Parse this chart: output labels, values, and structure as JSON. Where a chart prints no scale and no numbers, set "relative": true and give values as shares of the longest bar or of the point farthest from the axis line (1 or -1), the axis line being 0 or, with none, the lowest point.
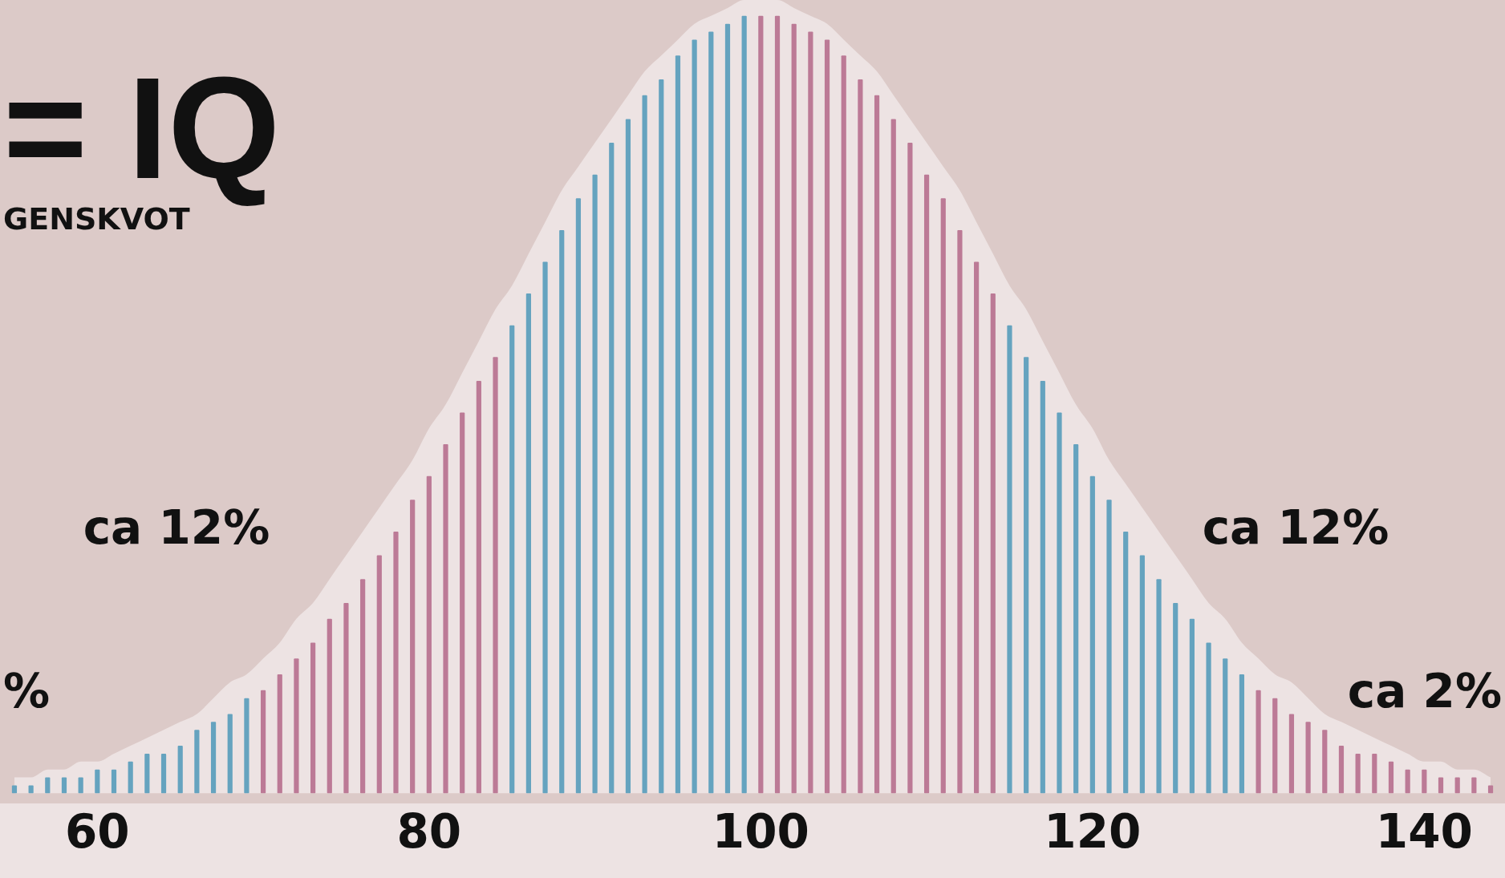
{
  "chart_data": {
    "type": "bar",
    "relative": true,
    "categories": [
      null,
      null,
      null,
      null,
      null,
      "60",
      null,
      null,
      null,
      null,
      null,
      null,
      null,
      null,
      null,
      null,
      null,
      null,
      null,
      null,
      null,
      null,
      null,
      null,
      null,
      "80",
      null,
      null,
      null,
      null,
      null,
      null,
      null,
      null,
      null,
      null,
      null,
      null,
      null,
      null,
      null,
      null,
      null,
      null,
      null,
      "100",
      null,
      null,
      null,
      null,
      null,
      null,
      null,
      null,
      null,
      null,
      null,
      null,
      null,
      null,
      null,
      null,
      null,
      null,
      null,
      "120",
      null,
      null,
      null,
      null,
      null,
      null,
      null,
      null,
      null,
      null,
      null,
      null,
      null,
      null,
      null,
      null,
      null,
      null,
      null,
      "140",
      null,
      null,
      null,
      null
    ],
    "series": [
      {
        "type": "area",
        "color": "#ede3e3",
        "values": [
          0.02,
          0.02,
          0.03,
          0.03,
          0.04,
          0.04,
          0.05,
          0.06,
          0.07,
          0.08,
          0.09,
          0.1,
          0.12,
          0.14,
          0.15,
          0.17,
          0.19,
          0.22,
          0.24,
          0.27,
          0.3,
          0.33,
          0.36,
          0.39,
          0.42,
          0.46,
          0.49,
          0.53,
          0.57,
          0.61,
          0.64,
          0.68,
          0.72,
          0.76,
          0.79,
          0.82,
          0.85,
          0.88,
          0.91,
          0.93,
          0.95,
          0.97,
          0.98,
          0.99,
          1.0,
          1,
          1.0,
          0.99,
          0.98,
          0.97,
          0.95,
          0.93,
          0.91,
          0.88,
          0.85,
          0.82,
          0.79,
          0.76,
          0.72,
          0.68,
          0.64,
          0.61,
          0.57,
          0.53,
          0.49,
          0.46,
          0.42,
          0.39,
          0.36,
          0.33,
          0.3,
          0.27,
          0.24,
          0.22,
          0.19,
          0.17,
          0.15,
          0.14,
          0.12,
          0.1,
          0.09,
          0.08,
          0.07,
          0.06,
          0.05,
          0.04,
          0.04,
          0.03,
          0.03,
          0.02
        ]
      },
      {
        "colors": [
          "#65a3bf",
          "#65a3bf",
          "#65a3bf",
          "#65a3bf",
          "#65a3bf",
          "#65a3bf",
          "#65a3bf",
          "#65a3bf",
          "#65a3bf",
          "#65a3bf",
          "#65a3bf",
          "#65a3bf",
          "#65a3bf",
          "#65a3bf",
          "#65a3bf",
          "#bc7a96",
          "#bc7a96",
          "#bc7a96",
          "#bc7a96",
          "#bc7a96",
          "#bc7a96",
          "#bc7a96",
          "#bc7a96",
          "#bc7a96",
          "#bc7a96",
          "#bc7a96",
          "#bc7a96",
          "#bc7a96",
          "#bc7a96",
          "#bc7a96",
          "#65a3bf",
          "#65a3bf",
          "#65a3bf",
          "#65a3bf",
          "#65a3bf",
          "#65a3bf",
          "#65a3bf",
          "#65a3bf",
          "#65a3bf",
          "#65a3bf",
          "#65a3bf",
          "#65a3bf",
          "#65a3bf",
          "#65a3bf",
          "#65a3bf",
          "#bc7a96",
          "#bc7a96",
          "#bc7a96",
          "#bc7a96",
          "#bc7a96",
          "#bc7a96",
          "#bc7a96",
          "#bc7a96",
          "#bc7a96",
          "#bc7a96",
          "#bc7a96",
          "#bc7a96",
          "#bc7a96",
          "#bc7a96",
          "#bc7a96",
          "#65a3bf",
          "#65a3bf",
          "#65a3bf",
          "#65a3bf",
          "#65a3bf",
          "#65a3bf",
          "#65a3bf",
          "#65a3bf",
          "#65a3bf",
          "#65a3bf",
          "#65a3bf",
          "#65a3bf",
          "#65a3bf",
          "#65a3bf",
          "#65a3bf",
          "#bc7a96",
          "#bc7a96",
          "#bc7a96",
          "#bc7a96",
          "#bc7a96",
          "#bc7a96",
          "#bc7a96",
          "#bc7a96",
          "#bc7a96",
          "#bc7a96",
          "#bc7a96",
          "#bc7a96",
          "#bc7a96",
          "#bc7a96",
          "#bc7a96"
        ],
        "values": [
          0.01,
          0.01,
          0.02,
          0.02,
          0.02,
          0.03,
          0.03,
          0.04,
          0.05,
          0.05,
          0.06,
          0.08,
          0.09,
          0.1,
          0.12,
          0.13,
          0.15,
          0.17,
          0.19,
          0.22,
          0.24,
          0.27,
          0.3,
          0.33,
          0.37,
          0.4,
          0.44,
          0.48,
          0.52,
          0.55,
          0.59,
          0.63,
          0.67,
          0.71,
          0.75,
          0.78,
          0.82,
          0.85,
          0.88,
          0.9,
          0.93,
          0.95,
          0.96,
          0.97,
          0.98,
          0.98,
          0.98,
          0.97,
          0.96,
          0.95,
          0.93,
          0.9,
          0.88,
          0.85,
          0.82,
          0.78,
          0.75,
          0.71,
          0.67,
          0.63,
          0.59,
          0.55,
          0.52,
          0.48,
          0.44,
          0.4,
          0.37,
          0.33,
          0.3,
          0.27,
          0.24,
          0.22,
          0.19,
          0.17,
          0.15,
          0.13,
          0.12,
          0.1,
          0.09,
          0.08,
          0.06,
          0.05,
          0.05,
          0.04,
          0.03,
          0.03,
          0.02,
          0.02,
          0.02,
          0.01
        ]
      }
    ],
    "annotations": [
      "= IQ",
      "GENSKVOT",
      "ca 12%",
      "ca 12%",
      "%",
      "ca 2%"
    ]
  }
}
